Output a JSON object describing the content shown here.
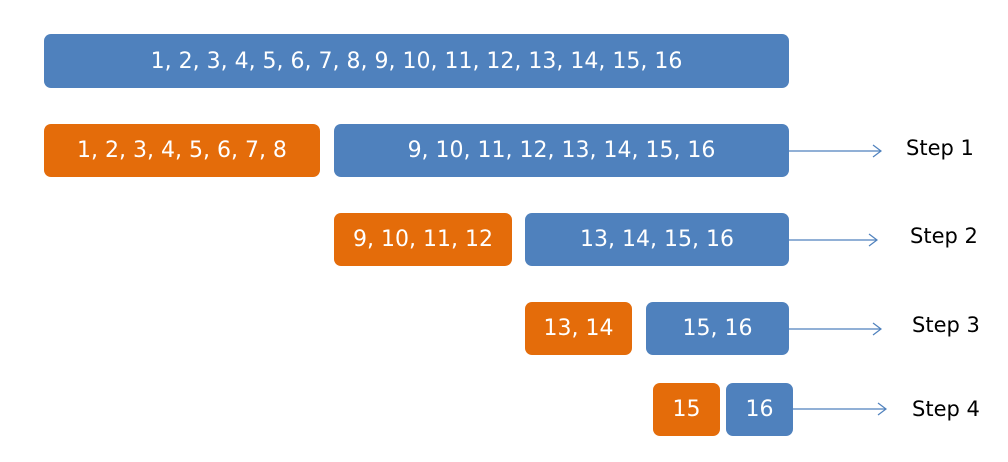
{
  "colors": {
    "kept": "#4f81bd",
    "discarded": "#e46c0a",
    "arrow": "#4f81bd",
    "label_text": "#000000"
  },
  "initial": {
    "label": "1, 2, 3, 4, 5, 6, 7, 8, 9, 10, 11, 12, 13, 14, 15, 16"
  },
  "steps": [
    {
      "discarded": "1, 2, 3, 4, 5, 6, 7, 8",
      "kept": "9, 10, 11, 12, 13, 14, 15, 16",
      "label": "Step 1"
    },
    {
      "discarded": "9, 10, 11, 12",
      "kept": "13, 14, 15, 16",
      "label": "Step 2"
    },
    {
      "discarded": "13, 14",
      "kept": "15, 16",
      "label": "Step 3"
    },
    {
      "discarded": "15",
      "kept": "16",
      "label": "Step 4"
    }
  ]
}
